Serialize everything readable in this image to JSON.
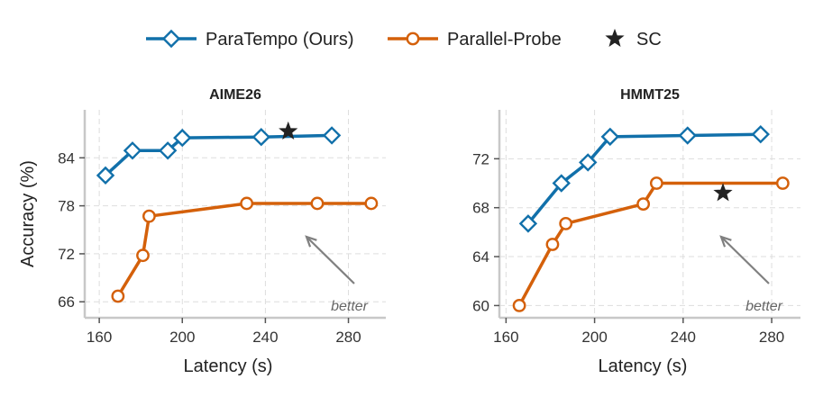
{
  "legend": {
    "items": [
      {
        "label": "ParaTempo (Ours)",
        "color": "#1170aa",
        "marker": "diamond-open"
      },
      {
        "label": "Parallel-Probe",
        "color": "#d4600a",
        "marker": "circle-open"
      },
      {
        "label": "SC",
        "color": "#222222",
        "marker": "star"
      }
    ],
    "placement": "top-center"
  },
  "chart_data": [
    {
      "type": "line",
      "title": "AIME26",
      "xlabel": "Latency (s)",
      "ylabel": "Accuracy (%)",
      "xlim": [
        153,
        298
      ],
      "ylim": [
        64,
        90
      ],
      "xticks": [
        160,
        200,
        240,
        280
      ],
      "yticks": [
        66,
        72,
        78,
        84
      ],
      "grid": true,
      "series": [
        {
          "name": "ParaTempo (Ours)",
          "color": "#1170aa",
          "marker": "diamond",
          "x": [
            163,
            176,
            193,
            200,
            238,
            272
          ],
          "y": [
            81.8,
            84.9,
            84.9,
            86.5,
            86.6,
            86.8
          ]
        },
        {
          "name": "Parallel-Probe",
          "color": "#d4600a",
          "marker": "circle",
          "x": [
            169,
            181,
            184,
            231,
            265,
            291
          ],
          "y": [
            66.7,
            71.8,
            76.7,
            78.3,
            78.3,
            78.3
          ]
        },
        {
          "name": "SC",
          "color": "#222222",
          "marker": "star",
          "x": [
            251
          ],
          "y": [
            87.3
          ]
        }
      ],
      "annotation": {
        "text": "better",
        "arrow": "toward upper-left",
        "position": "bottom-right"
      }
    },
    {
      "type": "line",
      "title": "HMMT25",
      "xlabel": "Latency (s)",
      "ylabel": "",
      "xlim": [
        157,
        293
      ],
      "ylim": [
        59,
        76
      ],
      "xticks": [
        160,
        200,
        240,
        280
      ],
      "yticks": [
        60,
        64,
        68,
        72
      ],
      "grid": true,
      "series": [
        {
          "name": "ParaTempo (Ours)",
          "color": "#1170aa",
          "marker": "diamond",
          "x": [
            170,
            185,
            197,
            207,
            242,
            275
          ],
          "y": [
            66.7,
            70.0,
            71.7,
            73.8,
            73.9,
            74.0
          ]
        },
        {
          "name": "Parallel-Probe",
          "color": "#d4600a",
          "marker": "circle",
          "x": [
            166,
            181,
            187,
            222,
            228,
            285
          ],
          "y": [
            60.0,
            65.0,
            66.7,
            68.3,
            70.0,
            70.0
          ]
        },
        {
          "name": "SC",
          "color": "#222222",
          "marker": "star",
          "x": [
            258
          ],
          "y": [
            69.2
          ]
        }
      ],
      "annotation": {
        "text": "better",
        "arrow": "toward upper-left",
        "position": "bottom-right"
      }
    }
  ]
}
